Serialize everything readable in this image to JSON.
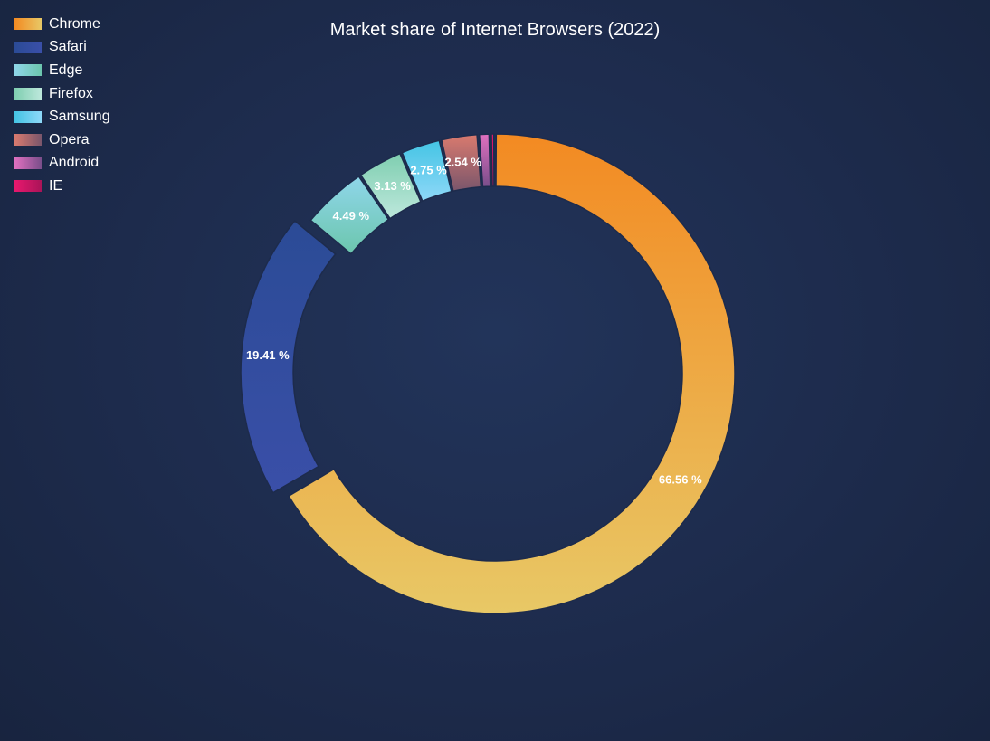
{
  "chart_data": {
    "type": "pie",
    "title": "Market share of Internet Browsers (2022)",
    "legend_position": "top-left",
    "categories": [
      "Chrome",
      "Safari",
      "Edge",
      "Firefox",
      "Samsung",
      "Opera",
      "Android",
      "IE"
    ],
    "values": [
      66.56,
      19.41,
      4.49,
      3.13,
      2.75,
      2.54,
      0.8,
      0.32
    ],
    "data_labels": [
      "66.56 %",
      "19.41 %",
      "4.49 %",
      "3.13 %",
      "2.75 %",
      "2.54 %",
      "",
      ""
    ],
    "colors": [
      [
        "#f38a22",
        "#e8c866"
      ],
      [
        "#2b4b96",
        "#3a4fa8"
      ],
      [
        "#8fd6ea",
        "#6cc6ad"
      ],
      [
        "#7fceb0",
        "#bde8dc"
      ],
      [
        "#44c4e4",
        "#8ed8f8"
      ],
      [
        "#d97a6e",
        "#7a566c"
      ],
      [
        "#e070c0",
        "#7a4e8a"
      ],
      [
        "#e8186e",
        "#aa1458"
      ]
    ],
    "exploded": [
      "Safari"
    ]
  }
}
